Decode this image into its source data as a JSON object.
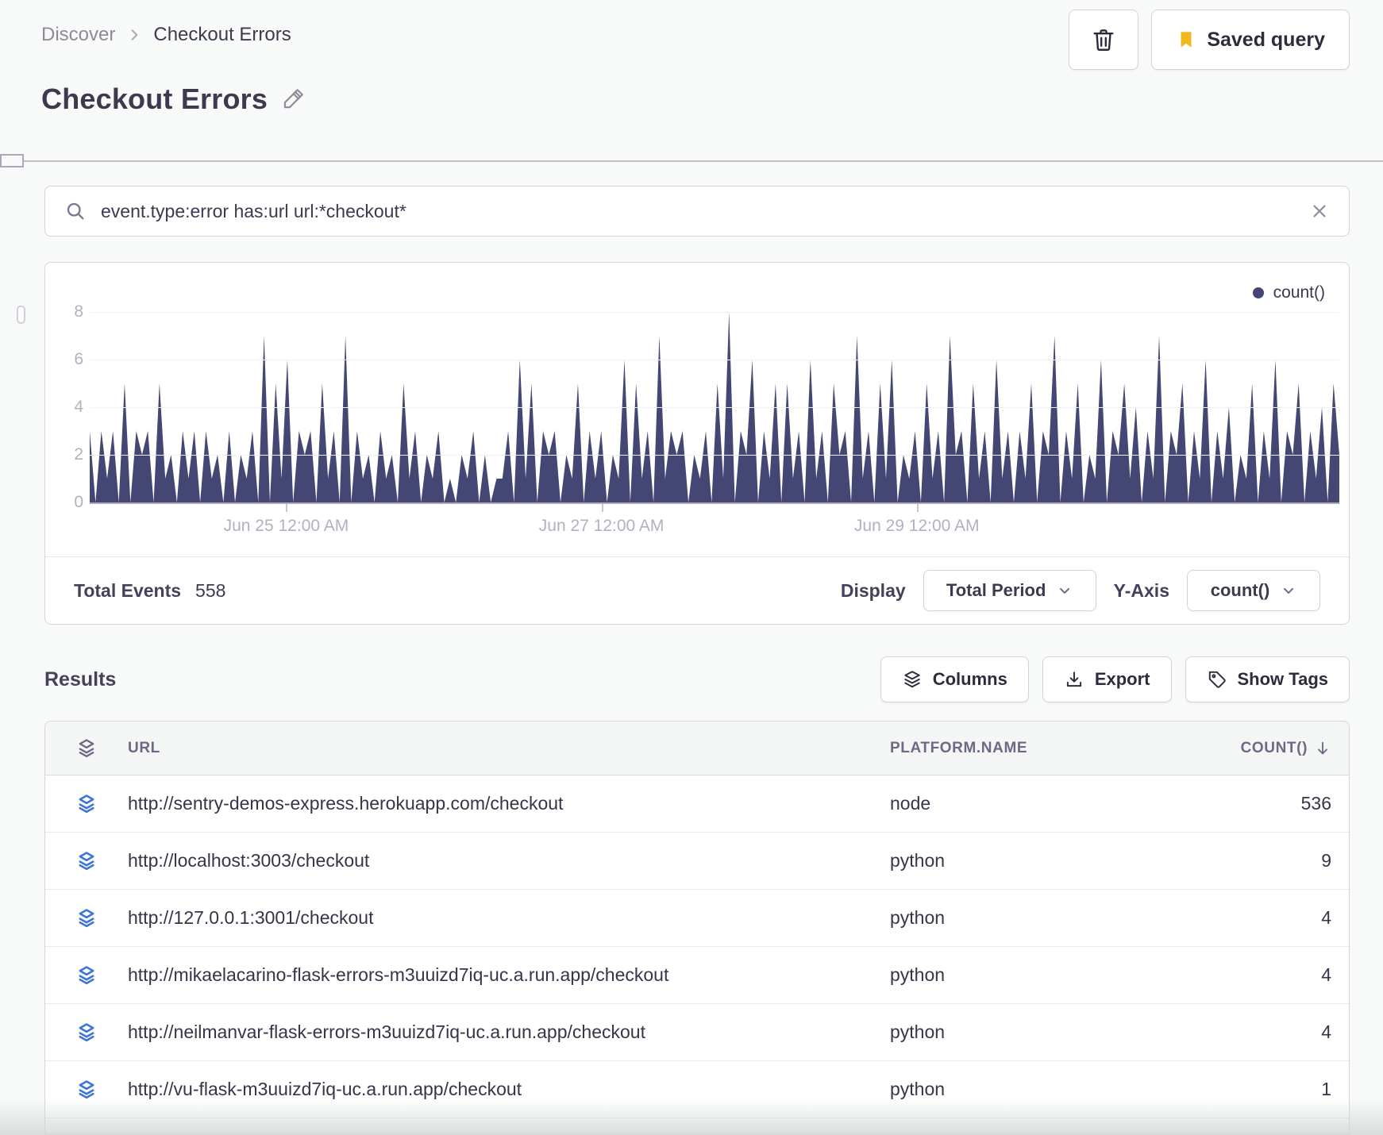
{
  "colors": {
    "accent": "#444674",
    "row_icon_blue": "#3d74d5",
    "bookmark_yellow": "#f0b71e",
    "page_bg": "#f8faf9"
  },
  "breadcrumb": {
    "items": [
      "Discover",
      "Checkout Errors"
    ]
  },
  "header": {
    "title": "Checkout Errors",
    "saved_query_label": "Saved query"
  },
  "search": {
    "query": "event.type:error has:url url:*checkout*"
  },
  "chart": {
    "legend": "count()",
    "yticks": [
      8,
      6,
      4,
      2,
      0
    ],
    "xticks": [
      {
        "label": "Jun 25 12:00 AM",
        "pct": 15.7
      },
      {
        "label": "Jun 27 12:00 AM",
        "pct": 40.9
      },
      {
        "label": "Jun 29 12:00 AM",
        "pct": 66.1
      }
    ]
  },
  "chart_data": {
    "type": "area",
    "title": "",
    "legend": [
      "count()"
    ],
    "ylim": [
      0,
      8
    ],
    "xtick_labels": [
      "Jun 25 12:00 AM",
      "Jun 27 12:00 AM",
      "Jun 29 12:00 AM"
    ],
    "grid": "horizontal-faint",
    "legend_position": "top-right",
    "series": [
      {
        "name": "count()",
        "values": [
          3,
          0,
          3,
          1,
          3,
          0,
          5,
          0,
          3,
          2,
          3,
          0,
          5,
          1,
          2,
          0,
          3,
          1,
          3,
          0,
          3,
          1,
          2,
          0,
          3,
          0,
          2,
          1,
          3,
          0,
          7,
          0,
          5,
          1,
          6,
          0,
          3,
          2,
          3,
          0,
          5,
          1,
          3,
          0,
          7,
          0,
          3,
          1,
          2,
          0,
          3,
          1,
          2,
          0,
          5,
          1,
          3,
          0,
          2,
          1,
          3,
          0,
          1,
          0,
          2,
          1,
          3,
          0,
          2,
          0,
          1,
          1,
          3,
          0,
          6,
          1,
          5,
          0,
          3,
          2,
          3,
          0,
          2,
          1,
          5,
          0,
          3,
          1,
          3,
          0,
          2,
          1,
          6,
          0,
          5,
          1,
          3,
          0,
          7,
          1,
          3,
          2,
          3,
          0,
          2,
          1,
          3,
          0,
          5,
          1,
          8,
          0,
          3,
          2,
          6,
          0,
          3,
          1,
          5,
          0,
          5,
          1,
          3,
          0,
          6,
          1,
          3,
          0,
          5,
          2,
          3,
          0,
          7,
          1,
          3,
          0,
          5,
          1,
          6,
          0,
          2,
          1,
          3,
          0,
          5,
          1,
          3,
          0,
          7,
          2,
          3,
          0,
          5,
          1,
          3,
          0,
          6,
          1,
          3,
          0,
          3,
          1,
          5,
          0,
          3,
          2,
          7,
          0,
          3,
          1,
          5,
          0,
          2,
          1,
          6,
          0,
          3,
          2,
          5,
          1,
          4,
          0,
          3,
          1,
          7,
          0,
          3,
          2,
          5,
          0,
          3,
          1,
          6,
          0,
          3,
          1,
          4,
          0,
          2,
          1,
          5,
          0,
          3,
          1,
          6,
          0,
          3,
          2,
          5,
          0,
          3,
          1,
          4,
          0,
          5,
          2
        ]
      }
    ]
  },
  "summary": {
    "total_events_label": "Total Events",
    "total_events_value": "558",
    "display_label": "Display",
    "display_value": "Total Period",
    "yaxis_label": "Y-Axis",
    "yaxis_value": "count()"
  },
  "results": {
    "heading": "Results",
    "columns_button": "Columns",
    "export_button": "Export",
    "show_tags_button": "Show Tags",
    "table": {
      "columns": [
        "URL",
        "PLATFORM.NAME",
        "COUNT()"
      ],
      "rows": [
        {
          "url": "http://sentry-demos-express.herokuapp.com/checkout",
          "platform": "node",
          "count": "536"
        },
        {
          "url": "http://localhost:3003/checkout",
          "platform": "python",
          "count": "9"
        },
        {
          "url": "http://127.0.0.1:3001/checkout",
          "platform": "python",
          "count": "4"
        },
        {
          "url": "http://mikaelacarino-flask-errors-m3uuizd7iq-uc.a.run.app/checkout",
          "platform": "python",
          "count": "4"
        },
        {
          "url": "http://neilmanvar-flask-errors-m3uuizd7iq-uc.a.run.app/checkout",
          "platform": "python",
          "count": "4"
        },
        {
          "url": "http://vu-flask-m3uuizd7iq-uc.a.run.app/checkout",
          "platform": "python",
          "count": "1"
        }
      ]
    }
  }
}
